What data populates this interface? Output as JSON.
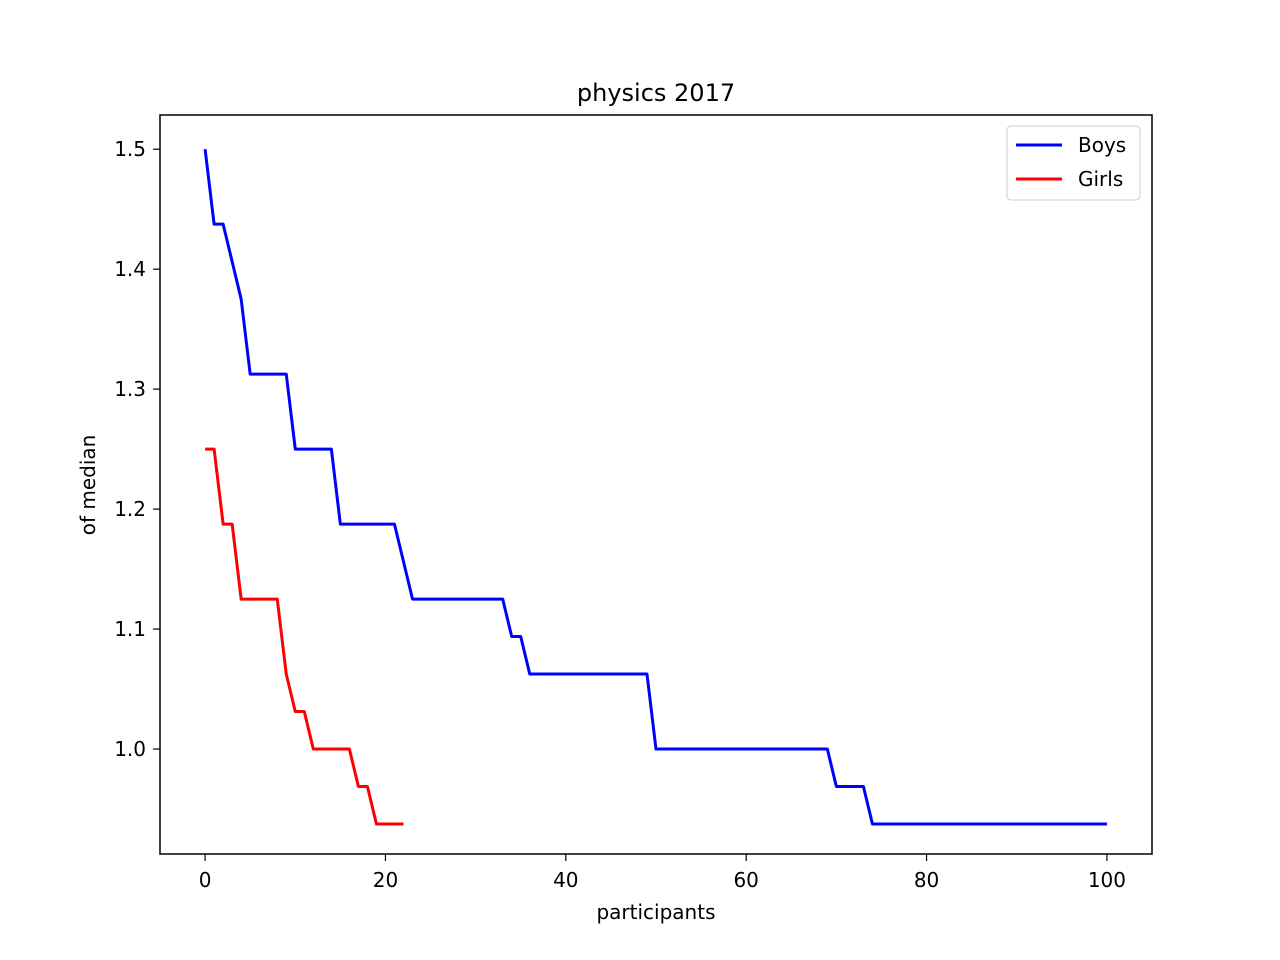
{
  "chart_data": {
    "type": "line",
    "title": "physics 2017",
    "xlabel": "participants",
    "ylabel": "of median",
    "xlim": [
      -5,
      105
    ],
    "ylim": [
      0.9125,
      1.5285
    ],
    "xticks": [
      0,
      20,
      40,
      60,
      80,
      100
    ],
    "yticks": [
      1.0,
      1.1,
      1.2,
      1.3,
      1.4,
      1.5
    ],
    "ytick_labels": [
      "1.0",
      "1.1",
      "1.2",
      "1.3",
      "1.4",
      "1.5"
    ],
    "grid": false,
    "legend_position": "upper right",
    "series": [
      {
        "name": "Boys",
        "color": "#0000ff",
        "x": [
          0,
          1,
          2,
          3,
          4,
          5,
          6,
          7,
          8,
          9,
          10,
          11,
          12,
          13,
          14,
          15,
          16,
          17,
          18,
          19,
          20,
          21,
          22,
          23,
          24,
          25,
          26,
          27,
          28,
          29,
          30,
          31,
          32,
          33,
          34,
          35,
          36,
          37,
          38,
          39,
          40,
          41,
          42,
          43,
          44,
          45,
          46,
          47,
          48,
          49,
          50,
          51,
          52,
          53,
          54,
          55,
          56,
          57,
          58,
          59,
          60,
          61,
          62,
          63,
          64,
          65,
          66,
          67,
          68,
          69,
          70,
          71,
          72,
          73,
          74,
          75,
          76,
          77,
          78,
          79,
          80,
          81,
          82,
          83,
          84,
          85,
          86,
          87,
          88,
          89,
          90,
          91,
          92,
          93,
          94,
          95,
          96,
          97,
          98,
          99,
          100
        ],
        "y": [
          1.5,
          1.4375,
          1.4375,
          1.40625,
          1.375,
          1.3125,
          1.3125,
          1.3125,
          1.3125,
          1.3125,
          1.25,
          1.25,
          1.25,
          1.25,
          1.25,
          1.1875,
          1.1875,
          1.1875,
          1.1875,
          1.1875,
          1.1875,
          1.1875,
          1.15625,
          1.125,
          1.125,
          1.125,
          1.125,
          1.125,
          1.125,
          1.125,
          1.125,
          1.125,
          1.125,
          1.125,
          1.09375,
          1.09375,
          1.0625,
          1.0625,
          1.0625,
          1.0625,
          1.0625,
          1.0625,
          1.0625,
          1.0625,
          1.0625,
          1.0625,
          1.0625,
          1.0625,
          1.0625,
          1.0625,
          1.0,
          1.0,
          1.0,
          1.0,
          1.0,
          1.0,
          1.0,
          1.0,
          1.0,
          1.0,
          1.0,
          1.0,
          1.0,
          1.0,
          1.0,
          1.0,
          1.0,
          1.0,
          1.0,
          1.0,
          0.96875,
          0.96875,
          0.96875,
          0.96875,
          0.9375,
          0.9375,
          0.9375,
          0.9375,
          0.9375,
          0.9375,
          0.9375,
          0.9375,
          0.9375,
          0.9375,
          0.9375,
          0.9375,
          0.9375,
          0.9375,
          0.9375,
          0.9375,
          0.9375,
          0.9375,
          0.9375,
          0.9375,
          0.9375,
          0.9375,
          0.9375,
          0.9375,
          0.9375,
          0.9375,
          0.9375
        ]
      },
      {
        "name": "Girls",
        "color": "#ff0000",
        "x": [
          0,
          1,
          2,
          3,
          4,
          5,
          6,
          7,
          8,
          9,
          10,
          11,
          12,
          13,
          14,
          15,
          16,
          17,
          18,
          19,
          20,
          21,
          22
        ],
        "y": [
          1.25,
          1.25,
          1.1875,
          1.1875,
          1.125,
          1.125,
          1.125,
          1.125,
          1.125,
          1.0625,
          1.03125,
          1.03125,
          1.0,
          1.0,
          1.0,
          1.0,
          1.0,
          0.96875,
          0.96875,
          0.9375,
          0.9375,
          0.9375,
          0.9375
        ]
      }
    ]
  }
}
